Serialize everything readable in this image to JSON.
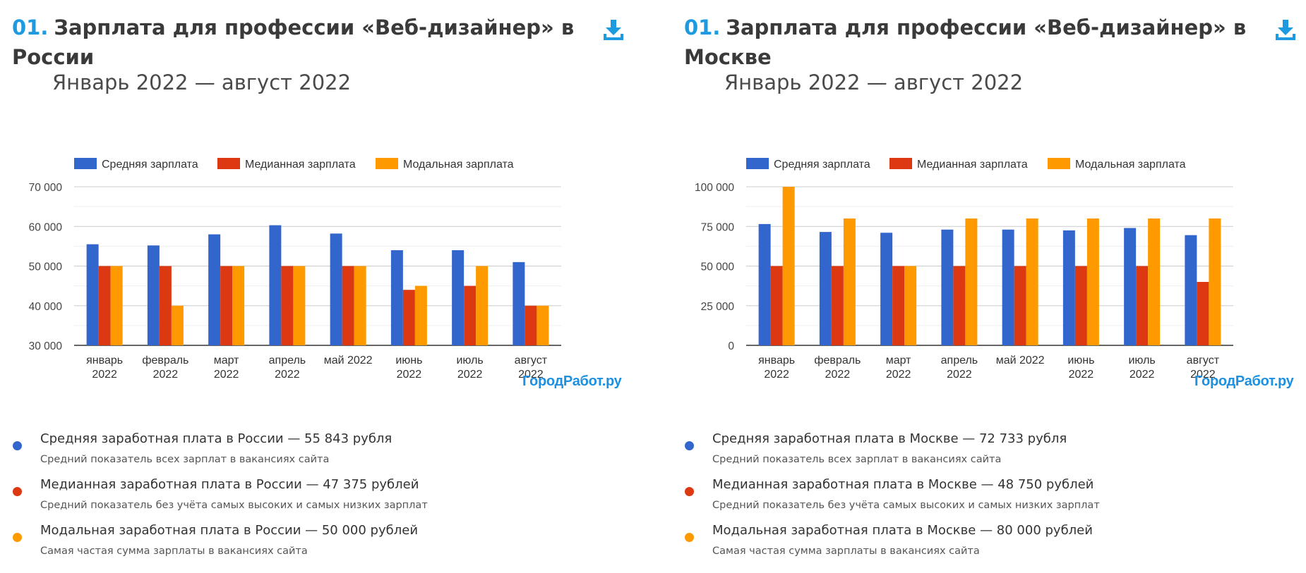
{
  "colors": {
    "accent": "#1e9be0",
    "avg": "#3366cc",
    "median": "#dc3912",
    "mode": "#ff9900"
  },
  "panels": [
    {
      "title_num": "01.",
      "title": "Зарплата для профессии «Веб-дизайнер» в России",
      "subtitle": "Январь 2022 — август 2022",
      "download_icon": "download-icon",
      "watermark": "ГородРабот.ру",
      "stats": [
        {
          "main": "Средняя заработная плата в России — 55 843 рубля",
          "sub": "Средний показатель всех зарплат в вакансиях сайта"
        },
        {
          "main": "Медианная заработная плата в России — 47 375 рублей",
          "sub": "Средний показатель без учёта самых высоких и самых низких зарплат"
        },
        {
          "main": "Модальная заработная плата в России — 50 000 рублей",
          "sub": "Самая частая сумма зарплаты в вакансиях сайта"
        }
      ]
    },
    {
      "title_num": "01.",
      "title": "Зарплата для профессии «Веб-дизайнер» в Москве",
      "subtitle": "Январь 2022 — август 2022",
      "download_icon": "download-icon",
      "watermark": "ГородРабот.ру",
      "stats": [
        {
          "main": "Средняя заработная плата в Москве — 72 733 рубля",
          "sub": "Средний показатель всех зарплат в вакансиях сайта"
        },
        {
          "main": "Медианная заработная плата в Москве — 48 750 рублей",
          "sub": "Средний показатель без учёта самых высоких и самых низких зарплат"
        },
        {
          "main": "Модальная заработная плата в Москве — 80 000 рублей",
          "sub": "Самая частая сумма зарплаты в вакансиях сайта"
        }
      ]
    }
  ],
  "chart_data": [
    {
      "type": "bar",
      "legend_position": "top",
      "categories": [
        "январь 2022",
        "февраль 2022",
        "март 2022",
        "апрель 2022",
        "май 2022",
        "июнь 2022",
        "июль 2022",
        "август 2022"
      ],
      "series": [
        {
          "name": "Средняя зарплата",
          "color": "#3366cc",
          "values": [
            55500,
            55200,
            58000,
            60300,
            58200,
            54000,
            54000,
            51000
          ]
        },
        {
          "name": "Медианная зарплата",
          "color": "#dc3912",
          "values": [
            50000,
            50000,
            50000,
            50000,
            50000,
            44000,
            45000,
            40000
          ]
        },
        {
          "name": "Модальная зарплата",
          "color": "#ff9900",
          "values": [
            50000,
            40000,
            50000,
            50000,
            50000,
            45000,
            50000,
            40000
          ]
        }
      ],
      "ylim": [
        30000,
        70000
      ],
      "yticks": [
        "70 000",
        "60 000",
        "50 000",
        "40 000",
        "30 000"
      ],
      "ytick_values": [
        70000,
        60000,
        50000,
        40000,
        30000
      ],
      "minor_grid": [
        35000,
        45000,
        55000,
        65000
      ],
      "grid": true
    },
    {
      "type": "bar",
      "legend_position": "top",
      "categories": [
        "январь 2022",
        "февраль 2022",
        "март 2022",
        "апрель 2022",
        "май 2022",
        "июнь 2022",
        "июль 2022",
        "август 2022"
      ],
      "series": [
        {
          "name": "Средняя зарплата",
          "color": "#3366cc",
          "values": [
            76500,
            71500,
            71000,
            73000,
            73000,
            72500,
            74000,
            69500
          ]
        },
        {
          "name": "Медианная зарплата",
          "color": "#dc3912",
          "values": [
            50000,
            50000,
            50000,
            50000,
            50000,
            50000,
            50000,
            40000
          ]
        },
        {
          "name": "Модальная зарплата",
          "color": "#ff9900",
          "values": [
            100000,
            80000,
            50000,
            80000,
            80000,
            80000,
            80000,
            80000
          ]
        }
      ],
      "ylim": [
        0,
        100000
      ],
      "yticks": [
        "100 000",
        "75 000",
        "50 000",
        "25 000",
        "0"
      ],
      "ytick_values": [
        100000,
        75000,
        50000,
        25000,
        0
      ],
      "minor_grid": [
        12500,
        37500,
        62500,
        87500
      ],
      "grid": true
    }
  ]
}
